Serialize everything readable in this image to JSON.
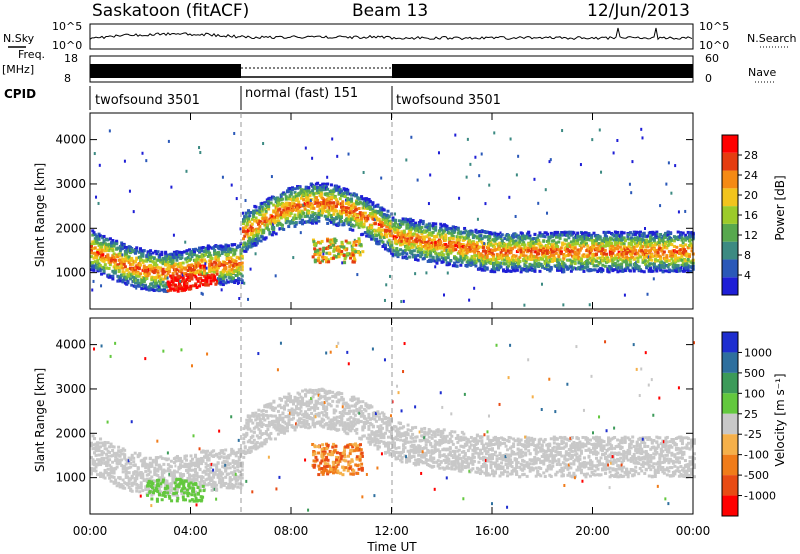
{
  "header": {
    "station": "Saskatoon (fitACF)",
    "beam": "Beam 13",
    "date": "12/Jun/2013"
  },
  "noise_panel": {
    "left_label": "N.Sky",
    "right_label": "N.Search",
    "left_ticks": [
      "10^5",
      "10^0"
    ],
    "right_ticks": [
      "10^5",
      "10^0"
    ]
  },
  "freq_panel": {
    "left_label_1": "Freq.",
    "left_label_2": "[MHz]",
    "right_label": "Nave",
    "left_ticks": [
      "18",
      "8"
    ],
    "right_ticks": [
      "60",
      "0"
    ]
  },
  "cpid": {
    "label": "CPID",
    "segments": [
      {
        "name": "twofsound 3501",
        "start_hour": 0,
        "end_hour": 6
      },
      {
        "name": "normal (fast) 151",
        "start_hour": 6,
        "end_hour": 12
      },
      {
        "name": "twofsound 3501",
        "start_hour": 12,
        "end_hour": 24
      }
    ]
  },
  "chart_data": [
    {
      "type": "heatmap",
      "title": "",
      "xlabel": "Time UT",
      "ylabel": "Slant Range [km]",
      "xlim": [
        0,
        24
      ],
      "ylim": [
        180,
        4600
      ],
      "x_ticks": [
        "00:00",
        "04:00",
        "08:00",
        "12:00",
        "16:00",
        "20:00",
        "00:00"
      ],
      "y_ticks": [
        "1000",
        "2000",
        "3000",
        "4000"
      ],
      "colorbar": {
        "label": "Power [dB]",
        "ticks": [
          "4",
          "8",
          "12",
          "16",
          "20",
          "24",
          "28"
        ],
        "colors": [
          "#1e1ed6",
          "#2a58b8",
          "#3c8a82",
          "#57a84e",
          "#9ccb2a",
          "#f2c41c",
          "#f58a14",
          "#e53c10",
          "#ff0000"
        ]
      },
      "features": [
        {
          "start": 0,
          "end": 6,
          "range": [
            900,
            1800
          ],
          "note": "main band"
        },
        {
          "start": 6,
          "end": 12,
          "range": [
            1700,
            2900
          ],
          "note": "arc"
        },
        {
          "start": 12,
          "end": 24,
          "range": [
            1200,
            2000
          ],
          "note": "main band"
        }
      ]
    },
    {
      "type": "heatmap",
      "title": "",
      "xlabel": "Time UT",
      "ylabel": "Slant Range [km]",
      "xlim": [
        0,
        24
      ],
      "ylim": [
        180,
        4600
      ],
      "x_ticks": [
        "00:00",
        "04:00",
        "08:00",
        "12:00",
        "16:00",
        "20:00",
        "00:00"
      ],
      "y_ticks": [
        "1000",
        "2000",
        "3000",
        "4000"
      ],
      "colorbar": {
        "label": "Velocity [m s⁻¹]",
        "ticks": [
          "1000",
          "500",
          "100",
          "25",
          "-25",
          "-100",
          "-500",
          "-1000"
        ],
        "colors": [
          "#1e2ecf",
          "#2e6f9e",
          "#3c9a59",
          "#63c83e",
          "#c8c8c8",
          "#f5b04a",
          "#f07c1a",
          "#e84b14",
          "#ff0000"
        ]
      }
    }
  ]
}
